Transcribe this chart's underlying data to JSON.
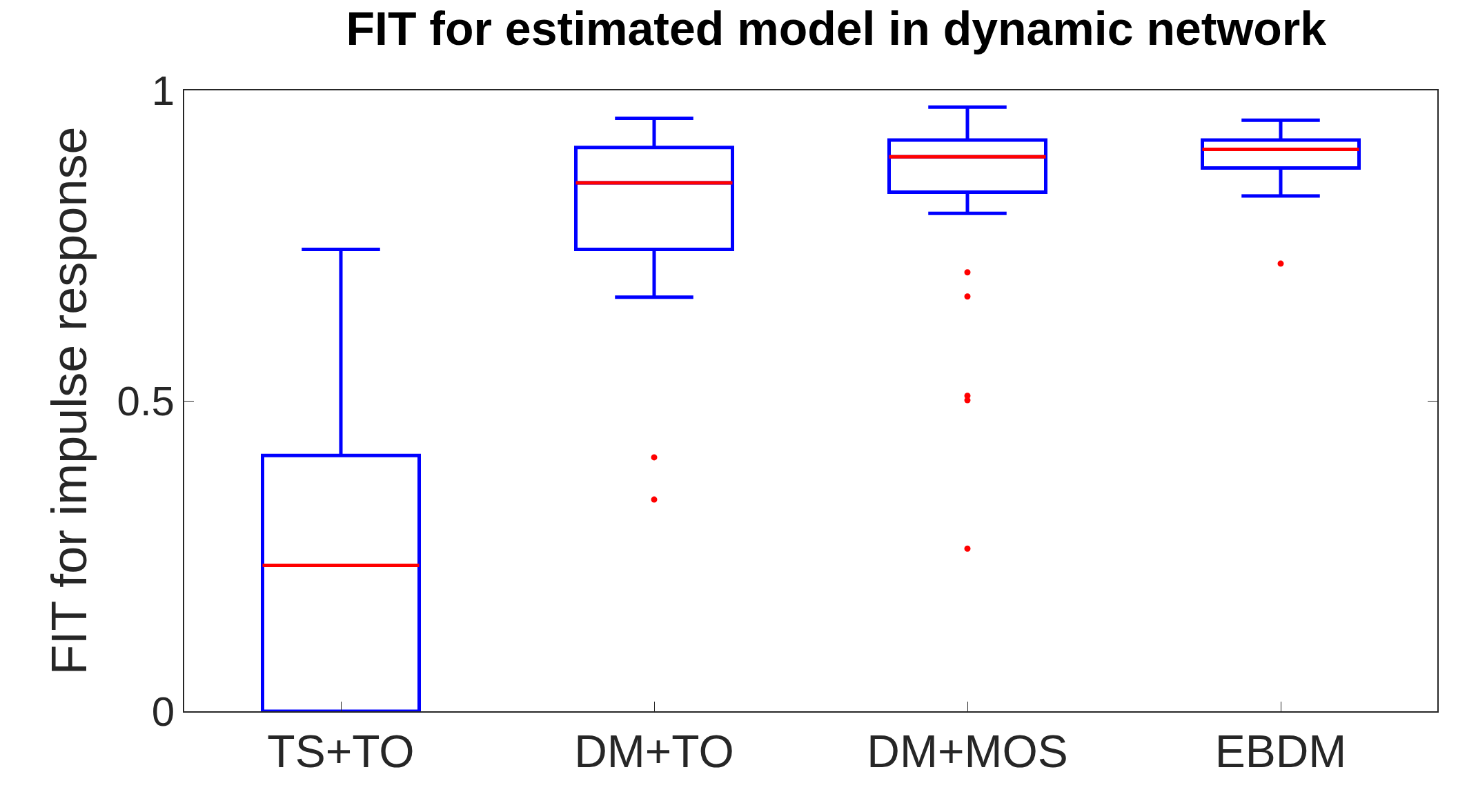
{
  "chart_data": {
    "type": "box",
    "title": "FIT for estimated model in dynamic network",
    "ylabel": "FIT for impulse response",
    "categories": [
      "TS+TO",
      "DM+TO",
      "DM+MOS",
      "EBDM"
    ],
    "series": [
      {
        "color": "#0000ff",
        "boxes": [
          {
            "low": 0,
            "q1": 0,
            "median": 0.235,
            "q3": 0.412,
            "high": 0.744
          },
          {
            "low": 0.667,
            "q1": 0.744,
            "median": 0.851,
            "q3": 0.908,
            "high": 0.955,
            "outliers": [
              0.409,
              0.341
            ]
          },
          {
            "low": 0.802,
            "q1": 0.836,
            "median": 0.893,
            "q3": 0.92,
            "high": 0.973,
            "outliers": [
              0.707,
              0.668,
              0.508,
              0.501,
              0.262
            ]
          },
          {
            "low": 0.83,
            "q1": 0.875,
            "median": 0.905,
            "q3": 0.92,
            "high": 0.952,
            "outliers": [
              0.721
            ]
          }
        ]
      }
    ],
    "ylim": [
      0,
      1
    ],
    "yticks": [
      0,
      0.5,
      1
    ]
  }
}
